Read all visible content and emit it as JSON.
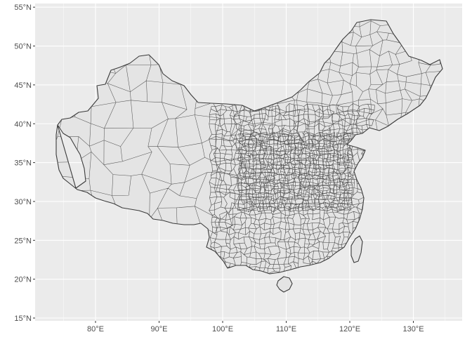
{
  "map": {
    "type": "choropleth-outline",
    "region_fill": "#e4e4e4",
    "border_color": "#3a3a3a",
    "panel_bg": "#ebebeb",
    "grid_color": "#ffffff",
    "x_axis": {
      "min": 70,
      "max": 138,
      "ticks": [
        80,
        90,
        100,
        110,
        120,
        130
      ],
      "labels": [
        "80°E",
        "90°E",
        "100°E",
        "110°E",
        "120°E",
        "130°E"
      ]
    },
    "y_axis": {
      "min": 15,
      "max": 55,
      "ticks": [
        15,
        20,
        25,
        30,
        35,
        40,
        45,
        50,
        55
      ],
      "labels": [
        "15°N",
        "20°N",
        "25°N",
        "30°N",
        "35°N",
        "40°N",
        "45°N",
        "50°N",
        "55°N"
      ]
    },
    "grid": true
  }
}
